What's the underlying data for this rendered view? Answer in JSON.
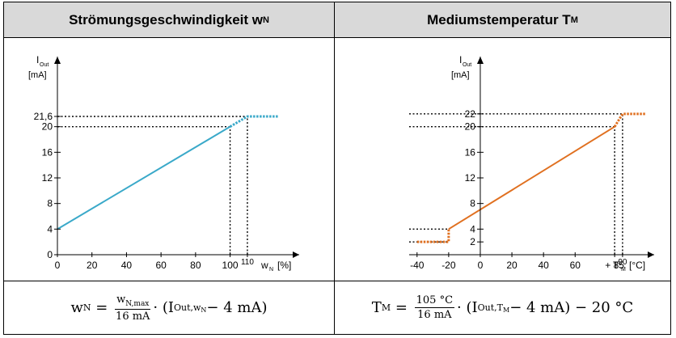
{
  "header": {
    "left": {
      "title": "Strömungsgeschwindigkeit w",
      "sub": "N"
    },
    "right": {
      "title": "Mediumstemperatur T",
      "sub": "M"
    }
  },
  "chart_data": [
    {
      "type": "line",
      "ylabel": {
        "symbol": "I",
        "sub": "Out",
        "unit": "[mA]"
      },
      "xlabel": {
        "symbol": "w",
        "sub": "N",
        "unit": "[%]"
      },
      "xlim": [
        0,
        140
      ],
      "ylim": [
        0,
        24
      ],
      "xticks": [
        0,
        20,
        40,
        60,
        80,
        100,
        110
      ],
      "xtick_labels": [
        "0",
        "20",
        "40",
        "60",
        "80",
        "100",
        "110"
      ],
      "yticks": [
        0,
        4,
        8,
        12,
        16,
        20,
        21.6
      ],
      "ytick_labels": [
        "0",
        "4",
        "8",
        "12",
        "16",
        "20",
        "21,6"
      ],
      "color": "#3aa9c9",
      "series_solid": [
        [
          0,
          4
        ],
        [
          100,
          20
        ]
      ],
      "series_dotted": [
        [
          100,
          20
        ],
        [
          110,
          21.6
        ],
        [
          128,
          21.6
        ]
      ],
      "guides": [
        {
          "x": [
            0,
            100
          ],
          "y": [
            20,
            20
          ]
        },
        {
          "x": [
            100,
            100
          ],
          "y": [
            0,
            20
          ]
        },
        {
          "x": [
            0,
            110
          ],
          "y": [
            21.6,
            21.6
          ]
        },
        {
          "x": [
            110,
            110
          ],
          "y": [
            0,
            21.6
          ]
        }
      ]
    },
    {
      "type": "line",
      "ylabel": {
        "symbol": "I",
        "sub": "Out",
        "unit": "[mA]"
      },
      "xlabel": {
        "symbol": "T",
        "sub": "M",
        "unit": "[°C]"
      },
      "xlim": [
        -45,
        110
      ],
      "ylim": [
        0,
        24
      ],
      "xticks": [
        -40,
        -20,
        0,
        20,
        40,
        60,
        85,
        90
      ],
      "xtick_labels": [
        "-40",
        "-20",
        "0",
        "20",
        "40",
        "60",
        "+ 85",
        "90"
      ],
      "yticks": [
        2,
        4,
        8,
        12,
        16,
        20,
        22
      ],
      "ytick_labels": [
        "2",
        "4",
        "8",
        "12",
        "16",
        "20",
        "22"
      ],
      "color": "#e07020",
      "series_solid": [
        [
          -20,
          4
        ],
        [
          85,
          20
        ]
      ],
      "series_dotted_low": [
        [
          -40,
          2
        ],
        [
          -20,
          2
        ],
        [
          -20,
          4
        ]
      ],
      "series_dotted_high": [
        [
          85,
          20
        ],
        [
          90,
          22
        ],
        [
          105,
          22
        ]
      ],
      "guides": [
        {
          "x": [
            -45,
            85
          ],
          "y": [
            20,
            20
          ]
        },
        {
          "x": [
            85,
            85
          ],
          "y": [
            0,
            20
          ]
        },
        {
          "x": [
            -45,
            90
          ],
          "y": [
            22,
            22
          ]
        },
        {
          "x": [
            90,
            90
          ],
          "y": [
            0,
            22
          ]
        },
        {
          "x": [
            -45,
            -20
          ],
          "y": [
            4,
            4
          ]
        },
        {
          "x": [
            -45,
            -20
          ],
          "y": [
            2,
            2
          ]
        }
      ]
    }
  ],
  "formulas": {
    "left": {
      "lhs": "w",
      "lhs_sub": "N",
      "eq": "=",
      "num": "w",
      "num_sub": "N,max",
      "den": "16 mA",
      "rhs_a": "· (I",
      "rhs_sub": "Out,w",
      "rhs_subsub": "N",
      "rhs_b": " − 4 mA)"
    },
    "right": {
      "lhs": "T",
      "lhs_sub": "M",
      "eq": "=",
      "num": "105 °C",
      "den": "16 mA",
      "rhs_a": "· (I",
      "rhs_sub": "Out,T",
      "rhs_subsub": "M",
      "rhs_b": " − 4 mA) − 20 °C"
    }
  }
}
